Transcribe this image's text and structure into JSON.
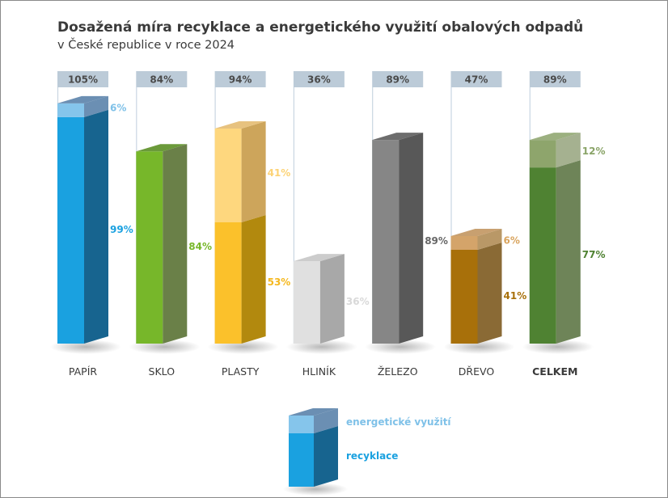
{
  "title": "Dosažená míra recyklace a energetického využití obalových odpadů",
  "subtitle": "v České republice v roce 2024",
  "chart_data": {
    "type": "bar",
    "stacked": true,
    "style": "3d",
    "categories": [
      "PAPÍR",
      "SKLO",
      "PLASTY",
      "HLINÍK",
      "ŽELEZO",
      "DŘEVO",
      "CELKEM"
    ],
    "totals": [
      "105%",
      "84%",
      "94%",
      "36%",
      "89%",
      "47%",
      "89%"
    ],
    "series": [
      {
        "name": "recyklace",
        "values": [
          99,
          84,
          53,
          36,
          89,
          41,
          77
        ],
        "labels": [
          "99%",
          "84%",
          "53%",
          "36%",
          "89%",
          "41%",
          "77%"
        ]
      },
      {
        "name": "energetické využití",
        "values": [
          6,
          0,
          41,
          0,
          0,
          6,
          12
        ],
        "labels": [
          "6%",
          "",
          "41%",
          "",
          "",
          "6%",
          "12%"
        ]
      }
    ],
    "colors": [
      {
        "front": "#1aa1e0",
        "side": "#17648f",
        "top": "#4a7fb0",
        "labelRec": "#1aa1e0",
        "energyFront": "#85c5eb",
        "energySide": "#6b8fb3",
        "energyTop": "#6b8fb3",
        "labelEnergy": "#7fc1e8"
      },
      {
        "front": "#77b72a",
        "side": "#6a8048",
        "top": "#6b9a3a",
        "labelRec": "#77b72a"
      },
      {
        "front": "#fbc12b",
        "side": "#b2890e",
        "top": "#d8a020",
        "labelRec": "#f5b81e",
        "energyFront": "#fed77e",
        "energySide": "#cda55b",
        "energyTop": "#e7c27f",
        "labelEnergy": "#fcd376"
      },
      {
        "front": "#e0e0e0",
        "side": "#a8a8a8",
        "top": "#cccccc",
        "labelRec": "#d9d9d9"
      },
      {
        "front": "#868686",
        "side": "#585858",
        "top": "#6d6d6d",
        "labelRec": "#666666"
      },
      {
        "front": "#a8700a",
        "side": "#8a6a35",
        "top": "#9a6a1c",
        "labelRec": "#a8700a",
        "energyFront": "#d4a46a",
        "energySide": "#b99867",
        "energyTop": "#c8a070",
        "labelEnergy": "#d9a45e"
      },
      {
        "front": "#4f8232",
        "side": "#6e8458",
        "top": "#608a48",
        "labelRec": "#4f8232",
        "energyFront": "#8ea56c",
        "energySide": "#a5b190",
        "energyTop": "#9cb080",
        "labelEnergy": "#8aa468"
      }
    ],
    "total_box_color": "#bccbd8",
    "category_label_color": "#3a3a3a",
    "emphasized_category": "CELKEM",
    "ylim": [
      0,
      105
    ],
    "legend": {
      "position": "bottom-center",
      "items": [
        "energetické využití",
        "recyklace"
      ]
    }
  },
  "legend_colors": {
    "recyklace": {
      "front": "#1aa1e0",
      "side": "#17648f",
      "text": "#1aa1e0"
    },
    "energy": {
      "front": "#85c5eb",
      "side": "#6b8fb3",
      "top": "#6b8fb3",
      "text": "#7fc1e8"
    }
  }
}
